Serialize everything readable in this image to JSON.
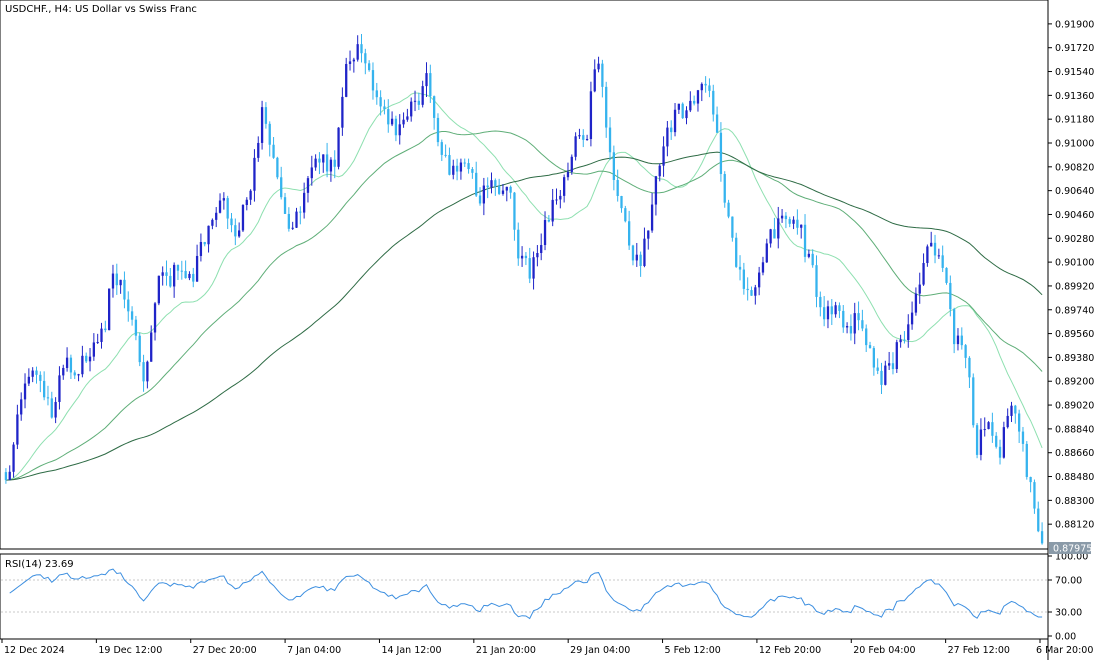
{
  "colors": {
    "bull": "#1f24c8",
    "bear": "#35b3ee",
    "ma_fast": "#8ee0b0",
    "ma_mid": "#5fae78",
    "ma_slow": "#2e6b45",
    "rsi": "#3d8fe0",
    "price_tag_bg": "#8a9aa8"
  },
  "chart_data": [
    {
      "type": "candlestick",
      "title": "USDCHF., H4:  US Dollar vs Swiss Franc",
      "symbol": "USDCHF.",
      "timeframe": "H4",
      "ylim": [
        0.8794,
        0.9202
      ],
      "y_ticks": [
        0.919,
        0.9172,
        0.9154,
        0.9136,
        0.9118,
        0.91,
        0.9082,
        0.9064,
        0.9046,
        0.9028,
        0.901,
        0.8992,
        0.8974,
        0.8956,
        0.8938,
        0.892,
        0.8902,
        0.8884,
        0.8866,
        0.8848,
        0.883,
        0.8812
      ],
      "y_tick_labels": [
        "0.91900",
        "0.91720",
        "0.91540",
        "0.91360",
        "0.91180",
        "0.91000",
        "0.90820",
        "0.90640",
        "0.90460",
        "0.90280",
        "0.90100",
        "0.89920",
        "0.89740",
        "0.89560",
        "0.89380",
        "0.89200",
        "0.89020",
        "0.88840",
        "0.88660",
        "0.88480",
        "0.88300",
        "0.88120"
      ],
      "last_price": 0.87975,
      "last_price_label": "0.87975",
      "x_labels": [
        "12 Dec 2024",
        "19 Dec 12:00",
        "27 Dec 20:00",
        "7 Jan 04:00",
        "14 Jan 12:00",
        "21 Jan 20:00",
        "29 Jan 04:00",
        "5 Feb 12:00",
        "12 Feb 20:00",
        "20 Feb 04:00",
        "27 Feb 12:00",
        "6 Mar 20:00"
      ],
      "close_anchors": [
        [
          0,
          0.884
        ],
        [
          4,
          0.891
        ],
        [
          8,
          0.893
        ],
        [
          12,
          0.8898
        ],
        [
          15,
          0.8935
        ],
        [
          18,
          0.8928
        ],
        [
          22,
          0.8944
        ],
        [
          26,
          0.896
        ],
        [
          28,
          0.9005
        ],
        [
          32,
          0.8975
        ],
        [
          36,
          0.8922
        ],
        [
          40,
          0.8998
        ],
        [
          44,
          0.9
        ],
        [
          48,
          0.8995
        ],
        [
          52,
          0.9025
        ],
        [
          56,
          0.906
        ],
        [
          60,
          0.9028
        ],
        [
          64,
          0.9065
        ],
        [
          67,
          0.912
        ],
        [
          70,
          0.9095
        ],
        [
          74,
          0.9035
        ],
        [
          78,
          0.906
        ],
        [
          82,
          0.909
        ],
        [
          86,
          0.908
        ],
        [
          89,
          0.9155
        ],
        [
          92,
          0.917
        ],
        [
          96,
          0.914
        ],
        [
          99,
          0.9125
        ],
        [
          102,
          0.9112
        ],
        [
          106,
          0.9125
        ],
        [
          110,
          0.9148
        ],
        [
          113,
          0.9098
        ],
        [
          116,
          0.9078
        ],
        [
          120,
          0.9082
        ],
        [
          124,
          0.906
        ],
        [
          128,
          0.907
        ],
        [
          132,
          0.9062
        ],
        [
          134,
          0.902
        ],
        [
          137,
          0.9005
        ],
        [
          140,
          0.903
        ],
        [
          143,
          0.9055
        ],
        [
          146,
          0.907
        ],
        [
          149,
          0.91
        ],
        [
          152,
          0.911
        ],
        [
          154,
          0.916
        ],
        [
          156,
          0.9145
        ],
        [
          158,
          0.909
        ],
        [
          160,
          0.906
        ],
        [
          163,
          0.902
        ],
        [
          166,
          0.9005
        ],
        [
          169,
          0.906
        ],
        [
          172,
          0.9102
        ],
        [
          175,
          0.912
        ],
        [
          178,
          0.9125
        ],
        [
          181,
          0.9135
        ],
        [
          184,
          0.914
        ],
        [
          186,
          0.911
        ],
        [
          188,
          0.905
        ],
        [
          191,
          0.901
        ],
        [
          194,
          0.8982
        ],
        [
          197,
          0.9
        ],
        [
          200,
          0.903
        ],
        [
          203,
          0.9038
        ],
        [
          206,
          0.9045
        ],
        [
          208,
          0.9032
        ],
        [
          211,
          0.9
        ],
        [
          214,
          0.8968
        ],
        [
          217,
          0.8975
        ],
        [
          220,
          0.8958
        ],
        [
          223,
          0.897
        ],
        [
          226,
          0.8945
        ],
        [
          229,
          0.892
        ],
        [
          232,
          0.8935
        ],
        [
          235,
          0.8955
        ],
        [
          238,
          0.899
        ],
        [
          241,
          0.9015
        ],
        [
          243,
          0.902
        ],
        [
          246,
          0.899
        ],
        [
          248,
          0.895
        ],
        [
          251,
          0.894
        ],
        [
          254,
          0.887
        ],
        [
          257,
          0.889
        ],
        [
          260,
          0.887
        ],
        [
          263,
          0.8895
        ],
        [
          265,
          0.8885
        ],
        [
          267,
          0.885
        ],
        [
          269,
          0.8825
        ],
        [
          271,
          0.8797
        ]
      ],
      "moving_averages": [
        {
          "period": 20,
          "color_key": "ma_fast"
        },
        {
          "period": 50,
          "color_key": "ma_mid"
        },
        {
          "period": 100,
          "color_key": "ma_slow"
        }
      ]
    },
    {
      "type": "line",
      "title": "RSI(14) 23.69",
      "indicator": "RSI(14)",
      "last_value": 23.69,
      "ylim": [
        0,
        100
      ],
      "y_ticks": [
        100,
        70,
        30,
        0
      ],
      "y_tick_labels": [
        "100.00",
        "70.00",
        "30.00",
        "0.00"
      ],
      "levels": [
        70,
        30
      ]
    }
  ]
}
